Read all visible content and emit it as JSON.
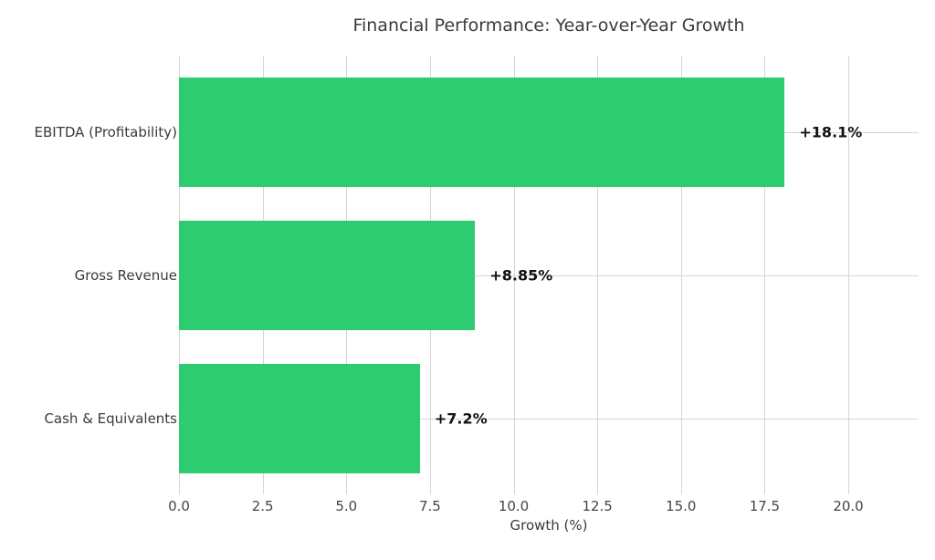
{
  "chart_data": {
    "type": "bar",
    "orientation": "horizontal",
    "title": "Financial Performance: Year-over-Year Growth",
    "xlabel": "Growth (%)",
    "ylabel": "",
    "categories": [
      "EBITDA (Profitability)",
      "Gross Revenue",
      "Cash & Equivalents"
    ],
    "values": [
      18.1,
      8.85,
      7.2
    ],
    "value_labels": [
      "+18.1%",
      "+8.85%",
      "+7.2%"
    ],
    "xticks": [
      0,
      2.5,
      5,
      7.5,
      10,
      12.5,
      15,
      17.5,
      20
    ],
    "xtick_labels": [
      "0.0",
      "2.5",
      "5.0",
      "7.5",
      "10.0",
      "12.5",
      "15.0",
      "17.5",
      "20.0"
    ],
    "xlim": [
      0,
      22.1
    ],
    "grid": true,
    "legend": null,
    "bar_color": "#2ecc71",
    "grid_color": "#d5d5d5",
    "value_label_color": "#111111",
    "text_color": "#3a3a3a"
  }
}
